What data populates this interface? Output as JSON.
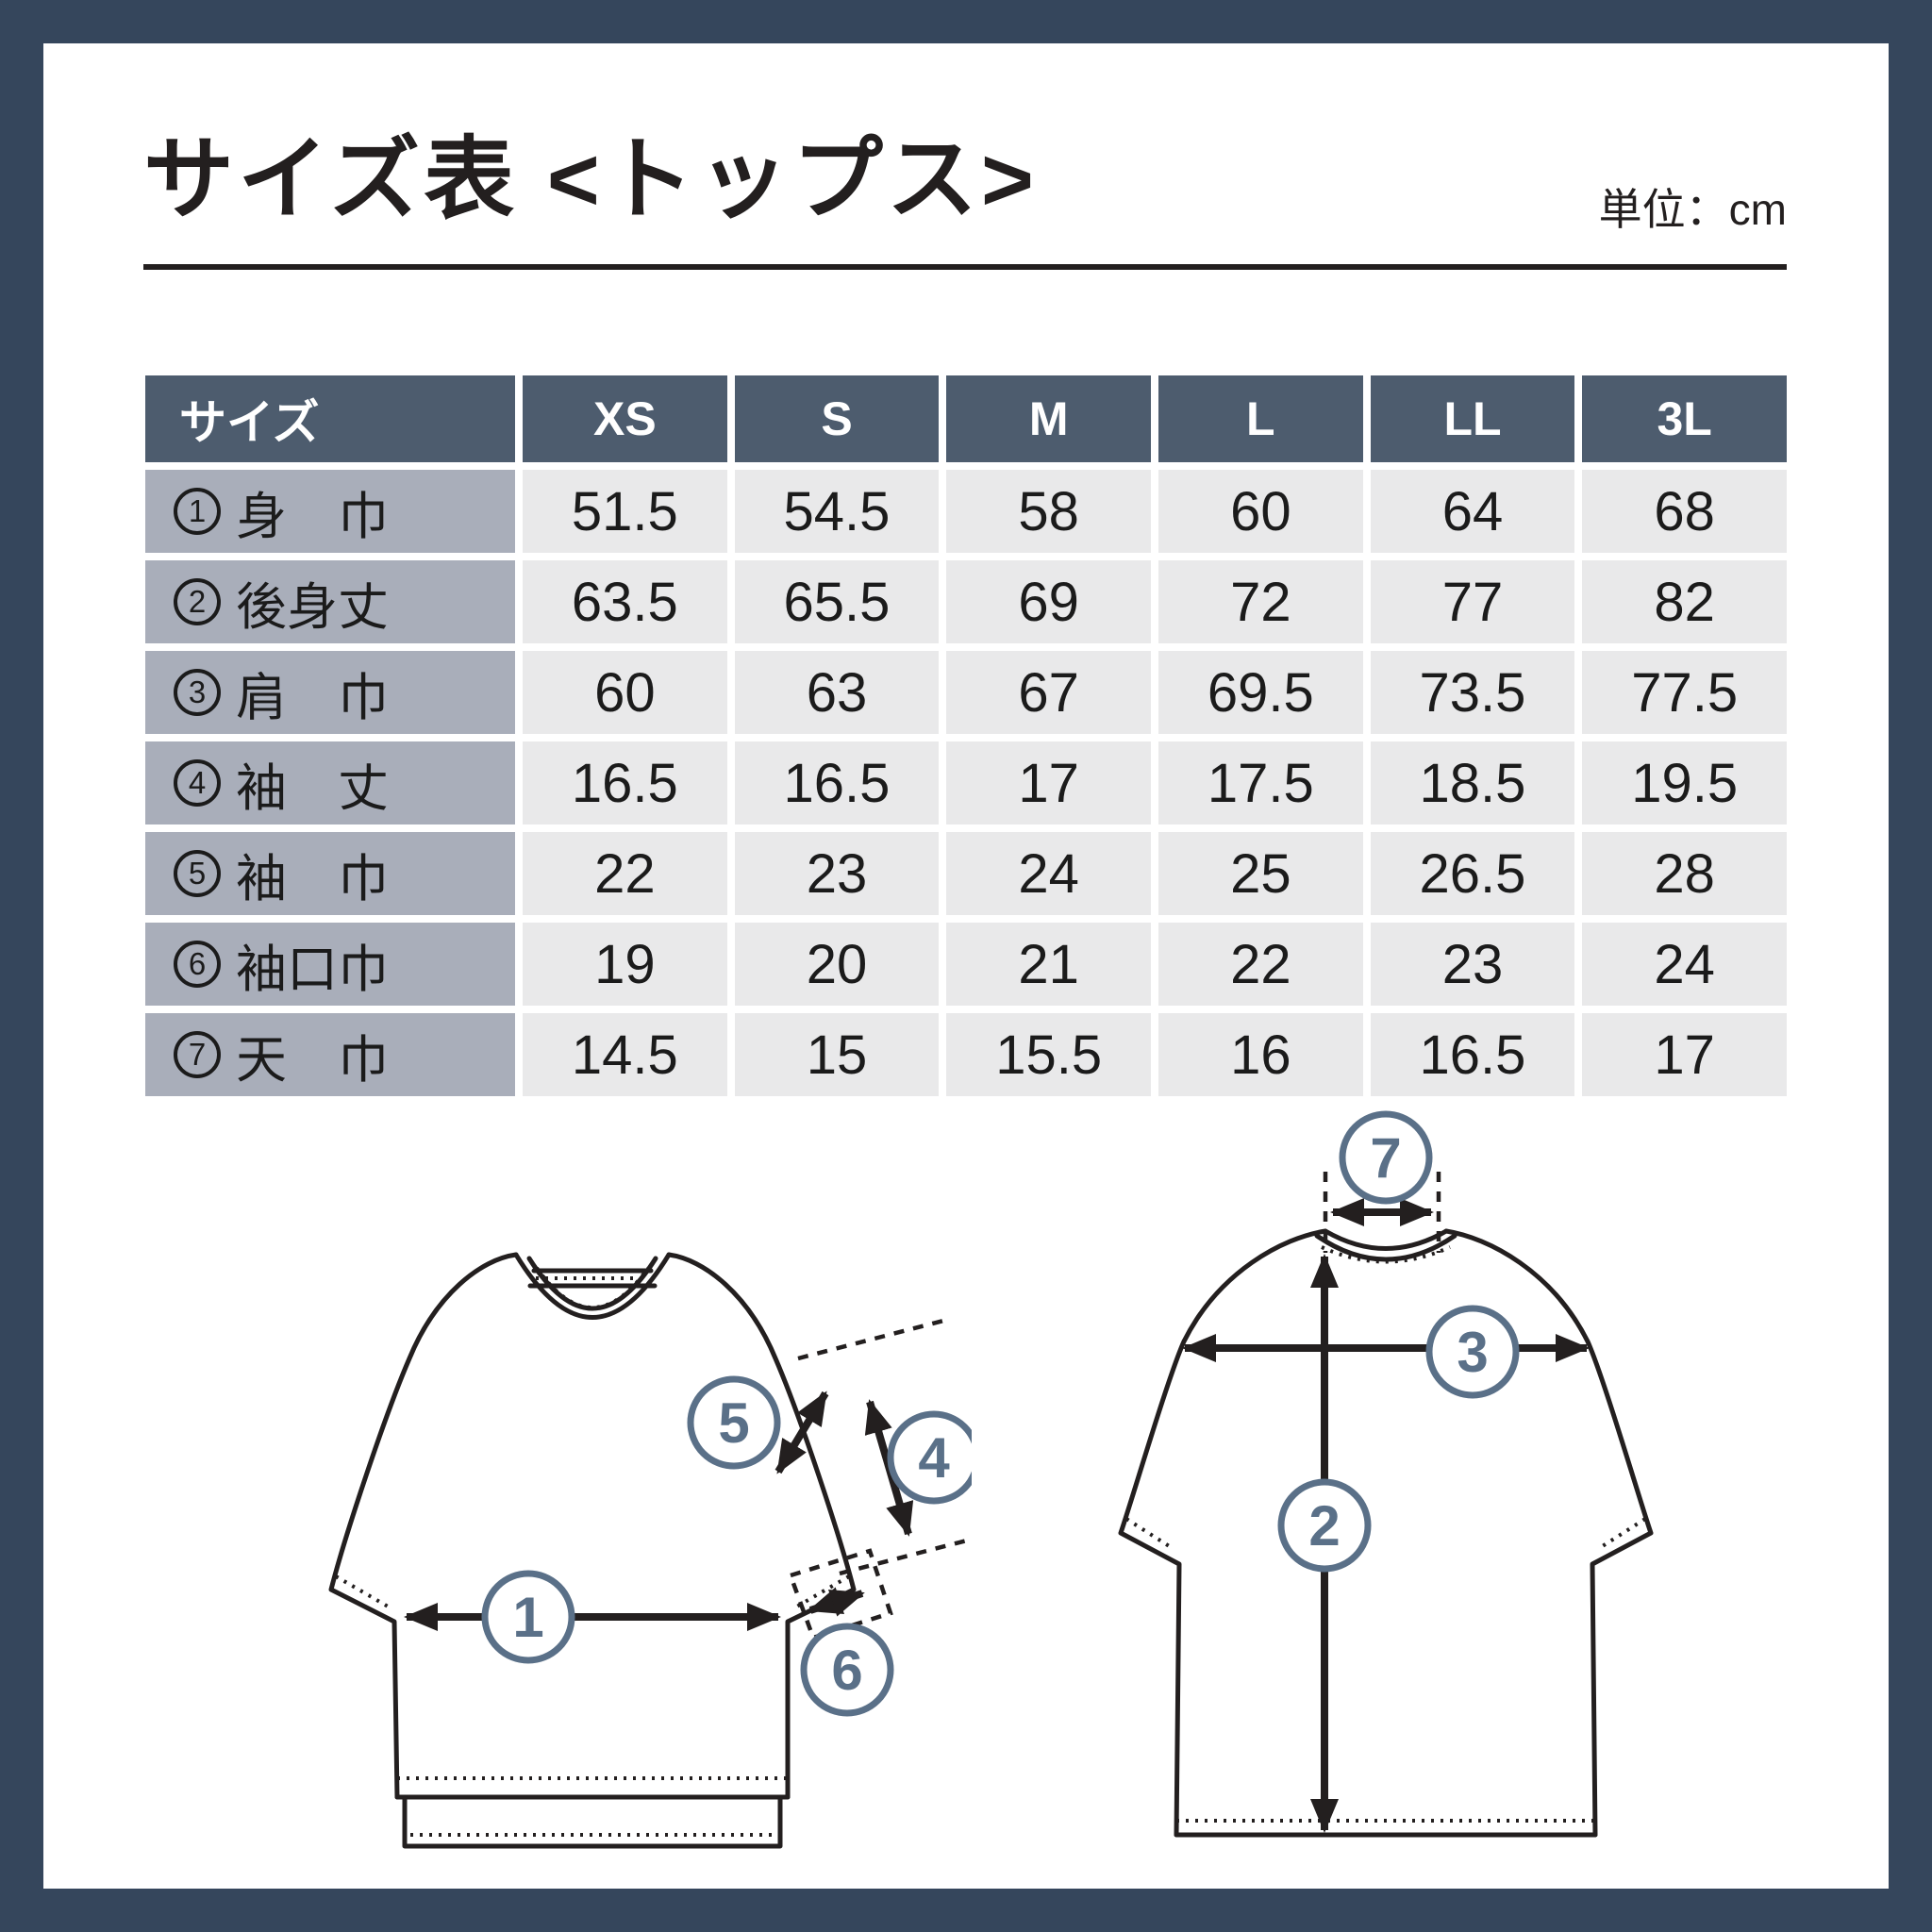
{
  "page": {
    "title": "サイズ表 <トップス>",
    "unit_label": "単位：cm"
  },
  "table": {
    "header": [
      "サイズ",
      "XS",
      "S",
      "M",
      "L",
      "LL",
      "3L"
    ],
    "rows": [
      {
        "num": "1",
        "label": "身　巾",
        "values": [
          "51.5",
          "54.5",
          "58",
          "60",
          "64",
          "68"
        ]
      },
      {
        "num": "2",
        "label": "後身丈",
        "values": [
          "63.5",
          "65.5",
          "69",
          "72",
          "77",
          "82"
        ]
      },
      {
        "num": "3",
        "label": "肩　巾",
        "values": [
          "60",
          "63",
          "67",
          "69.5",
          "73.5",
          "77.5"
        ]
      },
      {
        "num": "4",
        "label": "袖　丈",
        "values": [
          "16.5",
          "16.5",
          "17",
          "17.5",
          "18.5",
          "19.5"
        ]
      },
      {
        "num": "5",
        "label": "袖　巾",
        "values": [
          "22",
          "23",
          "24",
          "25",
          "26.5",
          "28"
        ]
      },
      {
        "num": "6",
        "label": "袖口巾",
        "values": [
          "19",
          "20",
          "21",
          "22",
          "23",
          "24"
        ]
      },
      {
        "num": "7",
        "label": "天　巾",
        "values": [
          "14.5",
          "15",
          "15.5",
          "16",
          "16.5",
          "17"
        ]
      }
    ]
  },
  "diagram": {
    "front_view_markers": {
      "chest_width": "1",
      "sleeve_length": "4",
      "sleeve_width": "5",
      "cuff_width": "6"
    },
    "back_view_markers": {
      "back_length": "2",
      "shoulder_width": "3",
      "neck_width": "7"
    }
  },
  "colors": {
    "frame": "#35465c",
    "table_header_bg": "#4d5c6e",
    "table_label_bg": "#a9aeba",
    "table_cell_bg": "#e9e9ea",
    "marker_blue": "#5a7088",
    "line_dark": "#231f1f"
  }
}
